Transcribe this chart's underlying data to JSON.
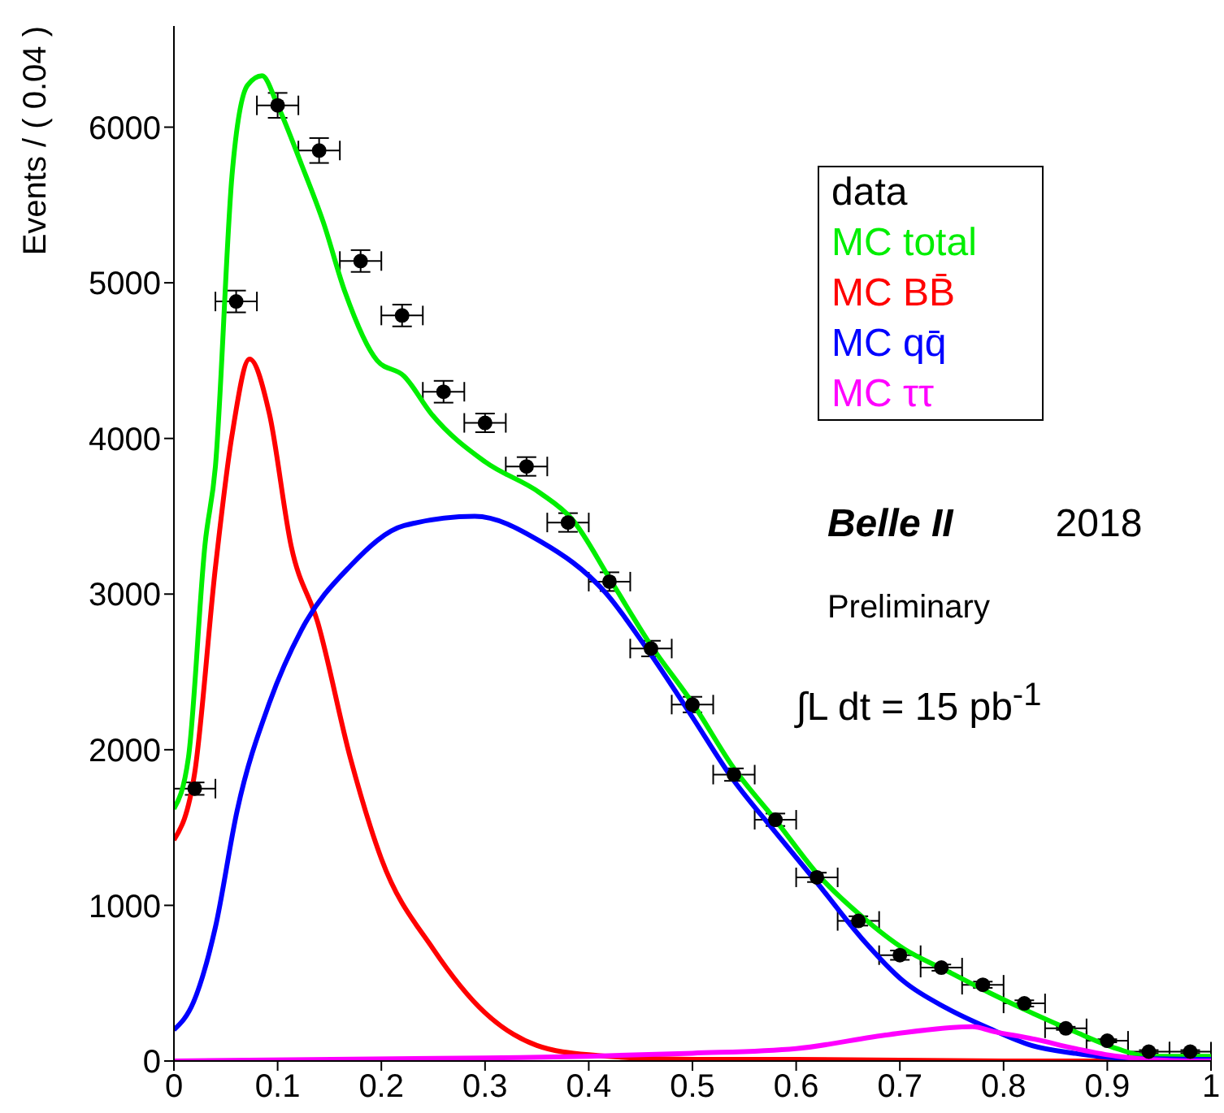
{
  "chart_data": {
    "type": "scatter",
    "ylabel": "Events / ( 0.04 )",
    "xlim": [
      0,
      1
    ],
    "xticks": [
      0,
      0.1,
      0.2,
      0.3,
      0.4,
      0.5,
      0.6,
      0.7,
      0.8,
      0.9,
      1
    ],
    "ylim": [
      0,
      6650
    ],
    "yticks": [
      0,
      1000,
      2000,
      3000,
      4000,
      5000,
      6000
    ],
    "grid": false,
    "legend": "top right",
    "series": [
      {
        "name": "data",
        "marker": "circle",
        "color": "#000000",
        "x": [
          0.02,
          0.06,
          0.1,
          0.14,
          0.18,
          0.22,
          0.26,
          0.3,
          0.34,
          0.38,
          0.42,
          0.46,
          0.5,
          0.54,
          0.58,
          0.62,
          0.66,
          0.7,
          0.74,
          0.78,
          0.82,
          0.86,
          0.9,
          0.94,
          0.98
        ],
        "values": [
          1750,
          4880,
          6140,
          5850,
          5140,
          4790,
          4300,
          4100,
          3820,
          3460,
          3080,
          2650,
          2290,
          1840,
          1550,
          1180,
          900,
          680,
          600,
          490,
          370,
          210,
          130,
          60,
          60
        ],
        "errors": [
          40,
          70,
          80,
          80,
          70,
          70,
          70,
          60,
          60,
          60,
          60,
          50,
          50,
          40,
          40,
          30,
          30,
          30,
          20,
          20,
          20,
          10,
          10,
          10,
          10
        ],
        "xerrors": [
          0.02,
          0.02,
          0.02,
          0.02,
          0.02,
          0.02,
          0.02,
          0.02,
          0.02,
          0.02,
          0.02,
          0.02,
          0.02,
          0.02,
          0.02,
          0.02,
          0.02,
          0.02,
          0.02,
          0.02,
          0.02,
          0.02,
          0.02,
          0.02,
          0.02
        ]
      },
      {
        "name": "MC total",
        "type": "line",
        "color": "#00ee00",
        "x": [
          0,
          0.014,
          0.03,
          0.04,
          0.056,
          0.071,
          0.085,
          0.1,
          0.123,
          0.144,
          0.165,
          0.196,
          0.222,
          0.248,
          0.3,
          0.353,
          0.384,
          0.421,
          0.459,
          0.501,
          0.54,
          0.581,
          0.622,
          0.663,
          0.704,
          0.745,
          0.786,
          0.827,
          0.868,
          0.909,
          0.94,
          1
        ],
        "values": [
          1620,
          1950,
          3320,
          3820,
          5690,
          6270,
          6330,
          6140,
          5760,
          5390,
          4940,
          4500,
          4400,
          4160,
          3850,
          3650,
          3480,
          3090,
          2680,
          2290,
          1880,
          1540,
          1190,
          930,
          720,
          580,
          440,
          310,
          190,
          80,
          30,
          30
        ]
      },
      {
        "name": "MC BB̄",
        "type": "line",
        "color": "#ff0000",
        "x": [
          0,
          0.02,
          0.04,
          0.056,
          0.073,
          0.092,
          0.113,
          0.139,
          0.17,
          0.2,
          0.25,
          0.3,
          0.35,
          0.4,
          0.5,
          0.6,
          0.8,
          1
        ],
        "values": [
          1420,
          1850,
          3170,
          4020,
          4510,
          4160,
          3310,
          2810,
          1950,
          1300,
          720,
          310,
          100,
          40,
          10,
          10,
          0,
          0
        ]
      },
      {
        "name": "MC qq̄",
        "type": "line",
        "color": "#0000ff",
        "x": [
          0,
          0.019,
          0.04,
          0.061,
          0.092,
          0.123,
          0.17,
          0.222,
          0.29,
          0.353,
          0.416,
          0.457,
          0.498,
          0.539,
          0.58,
          0.622,
          0.663,
          0.704,
          0.745,
          0.786,
          0.827,
          0.868,
          0.909,
          1
        ],
        "values": [
          200,
          380,
          860,
          1610,
          2300,
          2770,
          3180,
          3440,
          3500,
          3340,
          3010,
          2640,
          2230,
          1810,
          1470,
          1130,
          790,
          510,
          340,
          210,
          100,
          50,
          20,
          10
        ]
      },
      {
        "name": "MC ττ",
        "type": "line",
        "color": "#ff00ff",
        "x": [
          0,
          0.3,
          0.4,
          0.5,
          0.6,
          0.69,
          0.77,
          0.79,
          0.83,
          0.869,
          0.91,
          0.98,
          1
        ],
        "values": [
          0,
          20,
          30,
          50,
          80,
          170,
          220,
          190,
          140,
          80,
          30,
          0,
          0
        ]
      }
    ],
    "annotations": [
      "Belle II",
      "2018",
      "Preliminary",
      "∫L dt = 15 pb$^{-1}$"
    ]
  }
}
